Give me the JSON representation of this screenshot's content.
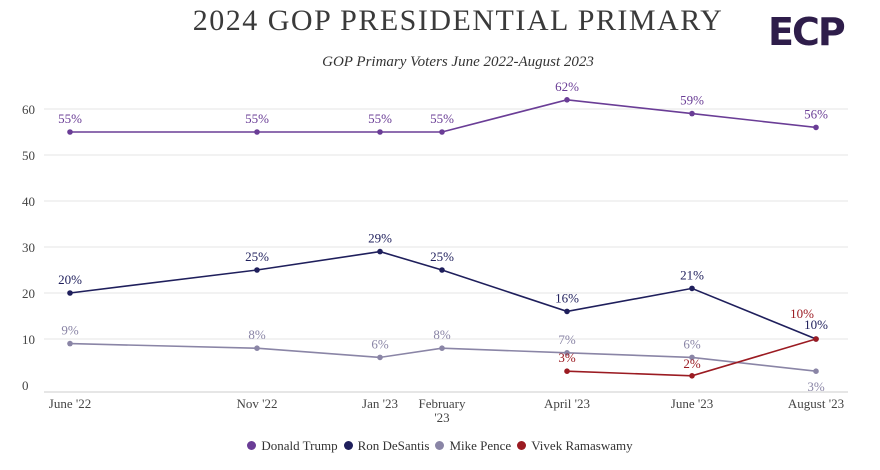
{
  "logo_text": "ECP",
  "chart_data": {
    "type": "line",
    "title": "2024 GOP PRESIDENTIAL PRIMARY",
    "subtitle": "GOP Primary Voters June 2022-August 2023",
    "xlabel": "",
    "ylabel": "",
    "ylim": [
      0,
      60
    ],
    "yticks": [
      0,
      10,
      20,
      30,
      40,
      50,
      60
    ],
    "grid": true,
    "legend_position": "bottom",
    "categories": [
      "June '22",
      "Nov '22",
      "Jan '23",
      "February '23",
      "April '23",
      "June '23",
      "August '23"
    ],
    "series": [
      {
        "name": "Donald Trump",
        "color": "#6a3d96",
        "points": [
          {
            "x": "June '22",
            "y": 55,
            "label": "55%"
          },
          {
            "x": "Nov '22",
            "y": 55,
            "label": "55%"
          },
          {
            "x": "Jan '23",
            "y": 55,
            "label": "55%"
          },
          {
            "x": "February '23",
            "y": 55,
            "label": "55%"
          },
          {
            "x": "April '23",
            "y": 62,
            "label": "62%"
          },
          {
            "x": "June '23",
            "y": 59,
            "label": "59%"
          },
          {
            "x": "August '23",
            "y": 56,
            "label": "56%"
          }
        ]
      },
      {
        "name": "Ron DeSantis",
        "color": "#1f1f5c",
        "points": [
          {
            "x": "June '22",
            "y": 20,
            "label": "20%"
          },
          {
            "x": "Nov '22",
            "y": 25,
            "label": "25%"
          },
          {
            "x": "Jan '23",
            "y": 29,
            "label": "29%"
          },
          {
            "x": "February '23",
            "y": 25,
            "label": "25%"
          },
          {
            "x": "April '23",
            "y": 16,
            "label": "16%"
          },
          {
            "x": "June '23",
            "y": 21,
            "label": "21%"
          },
          {
            "x": "August '23",
            "y": 10,
            "label": "10%"
          }
        ]
      },
      {
        "name": "Mike Pence",
        "color": "#8a85a6",
        "points": [
          {
            "x": "June '22",
            "y": 9,
            "label": "9%"
          },
          {
            "x": "Nov '22",
            "y": 8,
            "label": "8%"
          },
          {
            "x": "Jan '23",
            "y": 6,
            "label": "6%"
          },
          {
            "x": "February '23",
            "y": 8,
            "label": "8%"
          },
          {
            "x": "April '23",
            "y": 7,
            "label": "7%"
          },
          {
            "x": "June '23",
            "y": 6,
            "label": "6%"
          },
          {
            "x": "August '23",
            "y": 3,
            "label": "3%"
          }
        ]
      },
      {
        "name": "Vivek Ramaswamy",
        "color": "#9b1b22",
        "points": [
          {
            "x": "April '23",
            "y": 3,
            "label": "3%"
          },
          {
            "x": "June '23",
            "y": 2,
            "label": "2%"
          },
          {
            "x": "August '23",
            "y": 10,
            "label": "10%"
          }
        ]
      }
    ]
  }
}
